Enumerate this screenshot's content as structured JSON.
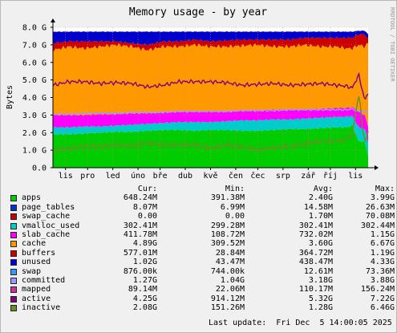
{
  "chart_data": {
    "type": "area",
    "title": "Memory usage - by year",
    "ylabel": "Bytes",
    "watermark": "RRDTOOL / TOBI OETIKER",
    "ylim": [
      0,
      8.0
    ],
    "y_ticks": [
      {
        "v": 0,
        "label": "0.0"
      },
      {
        "v": 1,
        "label": "1.0 G"
      },
      {
        "v": 2,
        "label": "2.0 G"
      },
      {
        "v": 3,
        "label": "3.0 G"
      },
      {
        "v": 4,
        "label": "4.0 G"
      },
      {
        "v": 5,
        "label": "5.0 G"
      },
      {
        "v": 6,
        "label": "6.0 G"
      },
      {
        "v": 7,
        "label": "7.0 G"
      },
      {
        "v": 8,
        "label": "8.0 G"
      }
    ],
    "x_labels": [
      "lis",
      "pro",
      "led",
      "úno",
      "bře",
      "dub",
      "kvě",
      "čen",
      "čec",
      "srp",
      "zář",
      "říj",
      "lis"
    ],
    "x_ticks": [
      0.04,
      0.11,
      0.19,
      0.27,
      0.34,
      0.42,
      0.5,
      0.58,
      0.65,
      0.73,
      0.81,
      0.88,
      0.96
    ],
    "grid": true,
    "stack_totals": {
      "x": [
        0,
        0.05,
        0.1,
        0.15,
        0.2,
        0.25,
        0.3,
        0.35,
        0.4,
        0.45,
        0.5,
        0.55,
        0.6,
        0.65,
        0.7,
        0.75,
        0.8,
        0.85,
        0.9,
        0.93,
        0.95,
        0.97,
        0.99,
        1.0
      ],
      "apps": [
        1.9,
        1.9,
        1.95,
        2.0,
        2.05,
        2.05,
        2.1,
        2.15,
        2.15,
        2.1,
        2.15,
        2.15,
        2.1,
        2.1,
        2.15,
        2.2,
        2.2,
        2.25,
        2.3,
        2.3,
        2.4,
        1.5,
        1.5,
        0.65
      ],
      "buffers": [
        2.3,
        2.3,
        2.35,
        2.35,
        2.4,
        2.45,
        2.5,
        2.55,
        2.6,
        2.6,
        2.6,
        2.65,
        2.7,
        2.7,
        2.75,
        2.75,
        2.8,
        2.85,
        2.9,
        2.9,
        2.95,
        2.3,
        2.2,
        1.4
      ],
      "slab": [
        3.0,
        3.0,
        3.0,
        3.05,
        3.05,
        3.1,
        3.1,
        3.15,
        3.2,
        3.2,
        3.2,
        3.2,
        3.25,
        3.25,
        3.3,
        3.3,
        3.3,
        3.35,
        3.4,
        3.4,
        3.45,
        3.2,
        3.0,
        2.3
      ],
      "cache": [
        6.7,
        6.9,
        6.8,
        6.9,
        7.0,
        6.9,
        6.7,
        6.9,
        6.9,
        7.0,
        6.9,
        6.9,
        6.95,
        7.0,
        6.9,
        6.9,
        7.0,
        6.9,
        6.9,
        6.8,
        6.8,
        7.0,
        6.9,
        7.1
      ],
      "unused": [
        7.1,
        7.2,
        7.2,
        7.2,
        7.2,
        7.1,
        7.0,
        7.2,
        7.2,
        7.3,
        7.2,
        7.25,
        7.3,
        7.3,
        7.3,
        7.3,
        7.4,
        7.4,
        7.4,
        7.4,
        7.4,
        7.6,
        7.6,
        7.3
      ],
      "swap": [
        7.75,
        7.75,
        7.75,
        7.75,
        7.75,
        7.75,
        7.75,
        7.75,
        7.75,
        7.75,
        7.75,
        7.75,
        7.75,
        7.75,
        7.75,
        7.75,
        7.75,
        7.75,
        7.75,
        7.75,
        7.75,
        7.8,
        7.8,
        7.6
      ]
    },
    "lines": {
      "active": [
        4.7,
        4.9,
        4.9,
        4.8,
        4.85,
        4.8,
        4.6,
        4.7,
        4.9,
        4.9,
        4.9,
        4.85,
        4.7,
        4.75,
        4.8,
        4.7,
        4.75,
        4.8,
        4.7,
        4.65,
        4.55,
        5.3,
        3.8,
        4.3
      ],
      "inactive": [
        1.0,
        1.1,
        1.2,
        1.2,
        1.3,
        1.25,
        1.4,
        1.3,
        1.3,
        1.3,
        1.1,
        1.3,
        1.2,
        1.0,
        1.15,
        1.2,
        1.35,
        1.5,
        1.5,
        1.6,
        1.9,
        4.2,
        1.3,
        2.1
      ],
      "committed": [
        3.05,
        3.05,
        3.1,
        3.1,
        3.1,
        3.15,
        3.15,
        3.15,
        3.2,
        3.2,
        3.2,
        3.2,
        3.25,
        3.25,
        3.25,
        3.3,
        3.3,
        3.3,
        3.3,
        3.3,
        3.35,
        3.2,
        3.2,
        3.2
      ]
    },
    "legend_header": {
      "cur": "Cur:",
      "min": "Min:",
      "avg": "Avg:",
      "max": "Max:"
    },
    "legend": [
      {
        "name": "apps",
        "color": "#00cc00",
        "cur": "648.24M",
        "min": "391.38M",
        "avg": "2.40G",
        "max": "3.99G"
      },
      {
        "name": "page_tables",
        "color": "#0033cc",
        "cur": "8.07M",
        "min": "6.99M",
        "avg": "14.58M",
        "max": "26.63M"
      },
      {
        "name": "swap_cache",
        "color": "#cc0000",
        "cur": "0.00",
        "min": "0.00",
        "avg": "1.70M",
        "max": "70.08M"
      },
      {
        "name": "vmalloc_used",
        "color": "#00cccc",
        "cur": "302.41M",
        "min": "299.28M",
        "avg": "302.41M",
        "max": "302.44M"
      },
      {
        "name": "slab_cache",
        "color": "#ff00ff",
        "cur": "411.78M",
        "min": "108.72M",
        "avg": "732.02M",
        "max": "1.15G"
      },
      {
        "name": "cache",
        "color": "#ff9900",
        "cur": "4.89G",
        "min": "309.52M",
        "avg": "3.60G",
        "max": "6.67G"
      },
      {
        "name": "buffers",
        "color": "#cc0000",
        "cur": "577.01M",
        "min": "28.84M",
        "avg": "364.72M",
        "max": "1.19G"
      },
      {
        "name": "unused",
        "color": "#0000cc",
        "cur": "1.02G",
        "min": "43.47M",
        "avg": "438.47M",
        "max": "4.33G"
      },
      {
        "name": "swap",
        "color": "#3399ff",
        "cur": "876.00k",
        "min": "744.00k",
        "avg": "12.61M",
        "max": "73.36M"
      },
      {
        "name": "committed",
        "color": "#9999ff",
        "cur": "1.27G",
        "min": "1.04G",
        "avg": "3.18G",
        "max": "3.88G"
      },
      {
        "name": "mapped",
        "color": "#cc3399",
        "cur": "89.14M",
        "min": "22.06M",
        "avg": "110.17M",
        "max": "156.24M"
      },
      {
        "name": "active",
        "color": "#800080",
        "cur": "4.25G",
        "min": "914.12M",
        "avg": "5.32G",
        "max": "7.22G"
      },
      {
        "name": "inactive",
        "color": "#6b8e23",
        "cur": "2.08G",
        "min": "151.26M",
        "avg": "1.28G",
        "max": "6.46G"
      }
    ],
    "last_update": "Last update:  Fri Dec  5 14:00:05 2025"
  }
}
